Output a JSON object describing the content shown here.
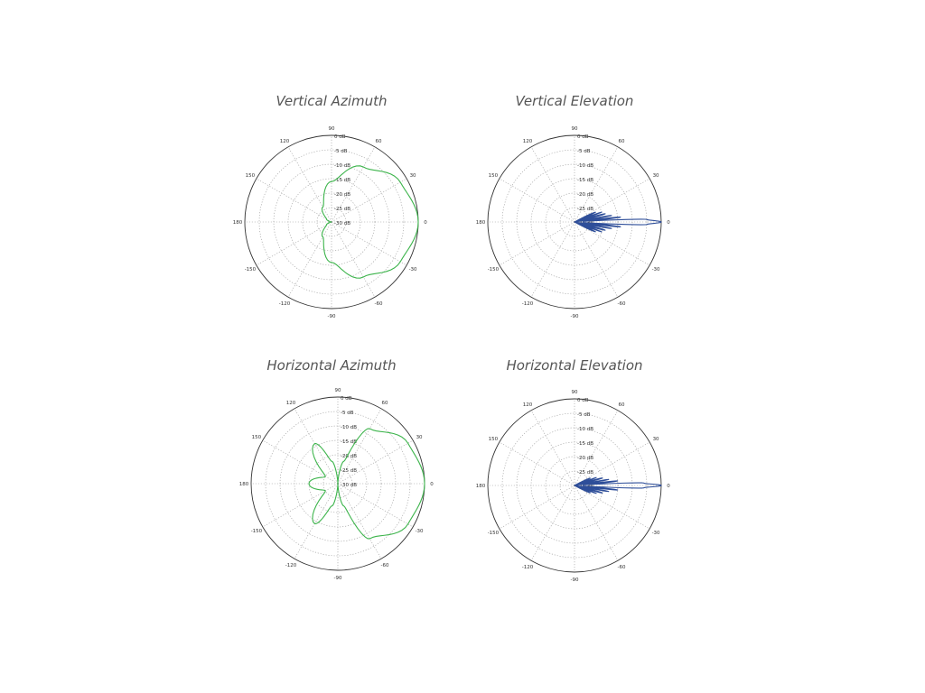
{
  "page": {
    "titles": [
      "Vertical Azimuth",
      "Vertical Elevation",
      "Horizontal Azimuth",
      "Horizontal Elevation"
    ]
  },
  "chart_data": [
    {
      "type": "polar",
      "title": "Vertical Azimuth",
      "color": "#3cb44b",
      "angle_unit": "deg",
      "radial_unit": "dB",
      "rlim": [
        -30,
        0
      ],
      "radial_ticks": [
        "0 dB",
        "-5 dB",
        "-10 dB",
        "-15 dB",
        "-20 dB",
        "-25 dB",
        "-30 dB"
      ],
      "angle_ticks": [
        "90",
        "60",
        "30",
        "0",
        "-30",
        "-60",
        "-90",
        "-120",
        "-150",
        "180",
        "150",
        "120"
      ],
      "grid": true,
      "series": [
        {
          "angles": [
            -180,
            -170,
            -150,
            -120,
            -90,
            -60,
            -30,
            0,
            30,
            60,
            90,
            120,
            150,
            170,
            180
          ],
          "values": [
            -30,
            -29.5,
            -28,
            -24,
            -16,
            -8,
            -2.5,
            0,
            -2.5,
            -8,
            -16,
            -24,
            -28,
            -29.5,
            -30
          ]
        }
      ]
    },
    {
      "type": "polar",
      "title": "Vertical Elevation",
      "color": "#2e4e99",
      "angle_unit": "deg",
      "radial_unit": "dB",
      "rlim": [
        -30,
        0
      ],
      "radial_ticks": [
        "0 dB",
        "-5 dB",
        "-10 dB",
        "-15 dB",
        "-20 dB",
        "-25 dB",
        "-30 dB"
      ],
      "angle_ticks": [
        "90",
        "60",
        "30",
        "0",
        "-30",
        "-60",
        "-90",
        "-120",
        "-150",
        "180",
        "150",
        "120"
      ],
      "grid": true,
      "series": [
        {
          "angles": [
            -30,
            -25,
            -22,
            -20,
            -18,
            -15,
            -12,
            -10,
            -8,
            -6,
            -4,
            -2,
            0,
            2,
            4,
            6,
            8,
            10,
            12,
            15,
            18,
            20,
            22,
            25,
            30
          ],
          "values": [
            -30,
            -22,
            -30,
            -20,
            -30,
            -19,
            -30,
            -17,
            -30,
            -14,
            -27,
            -5,
            0,
            -5,
            -27,
            -14,
            -30,
            -17,
            -30,
            -19,
            -30,
            -20,
            -30,
            -22,
            -30
          ]
        }
      ]
    },
    {
      "type": "polar",
      "title": "Horizontal Azimuth",
      "color": "#3cb44b",
      "angle_unit": "deg",
      "radial_unit": "dB",
      "rlim": [
        -30,
        0
      ],
      "radial_ticks": [
        "0 dB",
        "-5 dB",
        "-10 dB",
        "-15 dB",
        "-20 dB",
        "-25 dB",
        "-30 dB"
      ],
      "angle_ticks": [
        "90",
        "60",
        "30",
        "0",
        "-30",
        "-60",
        "-90",
        "-120",
        "-150",
        "180",
        "150",
        "120"
      ],
      "grid": true,
      "series": [
        {
          "angles": [
            -180,
            -150,
            -120,
            -105,
            -90,
            -75,
            -60,
            -30,
            0,
            30,
            60,
            75,
            90,
            105,
            120,
            150,
            180
          ],
          "values": [
            -20,
            -25,
            -14,
            -22,
            -30,
            -22,
            -8,
            -2,
            0,
            -2,
            -8,
            -22,
            -30,
            -22,
            -14,
            -25,
            -20
          ]
        }
      ]
    },
    {
      "type": "polar",
      "title": "Horizontal Elevation",
      "color": "#2e4e99",
      "angle_unit": "deg",
      "radial_unit": "dB",
      "rlim": [
        -30,
        0
      ],
      "radial_ticks": [
        "0 dB",
        "-5 dB",
        "-10 dB",
        "-15 dB",
        "-20 dB",
        "-25 dB",
        "-30 dB"
      ],
      "angle_ticks": [
        "90",
        "60",
        "30",
        "0",
        "-30",
        "-60",
        "-90",
        "-120",
        "-150",
        "180",
        "150",
        "120"
      ],
      "grid": true,
      "series": [
        {
          "angles": [
            -30,
            -25,
            -22,
            -20,
            -18,
            -15,
            -12,
            -10,
            -8,
            -6,
            -4,
            -2,
            0,
            2,
            4,
            6,
            8,
            10,
            12,
            15,
            18,
            20,
            22,
            25,
            30
          ],
          "values": [
            -30,
            -24,
            -30,
            -22,
            -30,
            -20,
            -30,
            -18,
            -30,
            -15,
            -27,
            -6,
            0,
            -6,
            -27,
            -15,
            -30,
            -18,
            -30,
            -20,
            -30,
            -22,
            -30,
            -24,
            -30
          ]
        }
      ]
    }
  ]
}
